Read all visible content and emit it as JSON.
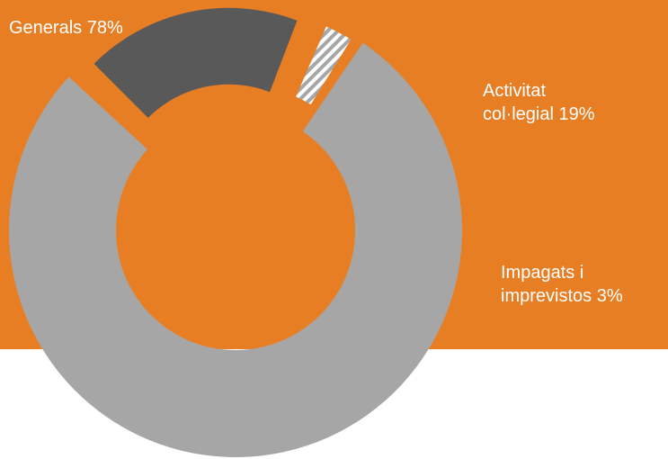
{
  "colors": {
    "background_panel": "#E87E24",
    "page": "#FFFFFF",
    "generals": "#A6A6A6",
    "activitat": "#595959",
    "impagats_hatch_light": "#FFFFFF",
    "impagats_hatch_dark": "#A6A6A6",
    "label_text": "#FFFFFF"
  },
  "labels": {
    "generals": "Generals 78%",
    "activitat_line1": "Activitat",
    "activitat_line2": "col·legial 19%",
    "impagats_line1": "Impagats i",
    "impagats_line2": "imprevistos 3%"
  },
  "chart_data": {
    "type": "pie",
    "variant": "donut",
    "categories": [
      "Generals",
      "Activitat col·legial",
      "Impagats i imprevistos"
    ],
    "values": [
      78,
      19,
      3
    ],
    "unit": "%",
    "exploded": [
      "Activitat col·legial",
      "Impagats i imprevistos"
    ],
    "legend": "none",
    "data_labels": "outside"
  }
}
